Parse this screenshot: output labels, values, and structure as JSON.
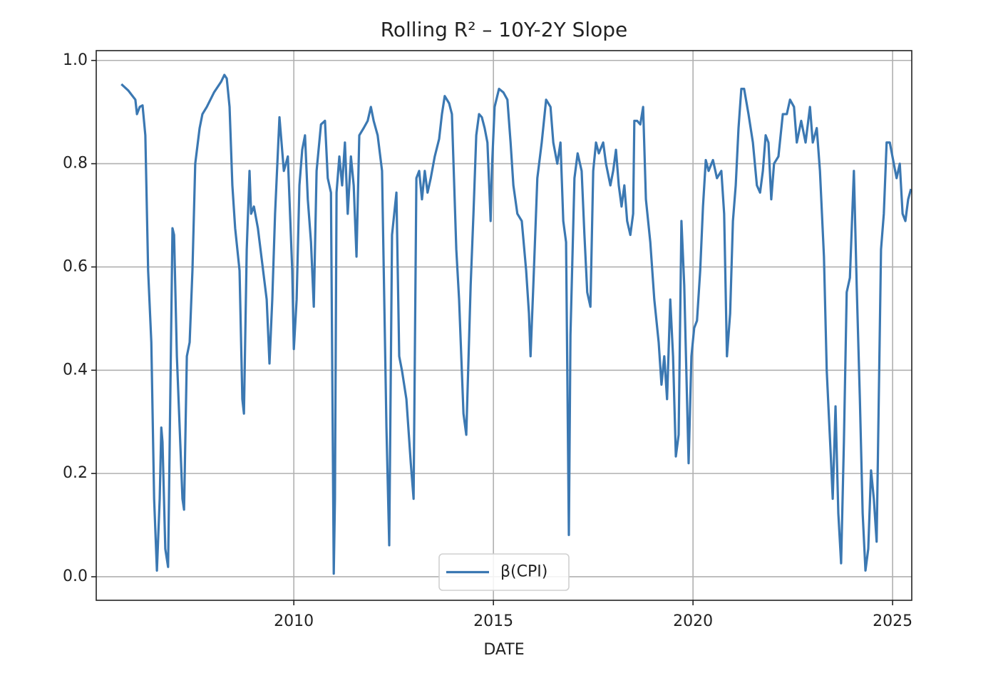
{
  "chart_data": {
    "type": "line",
    "title": "Rolling R² – 10Y-2Y Slope",
    "x_label": "DATE",
    "x": [
      2005.68,
      2005.85,
      2006.03,
      2006.07,
      2006.14,
      2006.21,
      2006.28,
      2006.35,
      2006.43,
      2006.5,
      2006.57,
      2006.64,
      2006.68,
      2006.71,
      2006.78,
      2006.85,
      2006.93,
      2006.96,
      2007.0,
      2007.07,
      2007.14,
      2007.21,
      2007.25,
      2007.32,
      2007.39,
      2007.46,
      2007.53,
      2007.64,
      2007.71,
      2007.82,
      2008.0,
      2008.18,
      2008.26,
      2008.32,
      2008.39,
      2008.46,
      2008.53,
      2008.64,
      2008.71,
      2008.75,
      2008.82,
      2008.89,
      2008.93,
      2009.0,
      2009.1,
      2009.21,
      2009.32,
      2009.39,
      2009.46,
      2009.53,
      2009.64,
      2009.75,
      2009.85,
      2009.96,
      2010.0,
      2010.07,
      2010.14,
      2010.21,
      2010.28,
      2010.35,
      2010.43,
      2010.5,
      2010.57,
      2010.68,
      2010.78,
      2010.85,
      2010.93,
      2011.0,
      2011.03,
      2011.07,
      2011.14,
      2011.21,
      2011.28,
      2011.35,
      2011.43,
      2011.5,
      2011.57,
      2011.64,
      2011.75,
      2011.85,
      2011.93,
      2012.0,
      2012.1,
      2012.21,
      2012.32,
      2012.39,
      2012.46,
      2012.57,
      2012.64,
      2012.71,
      2012.82,
      2012.93,
      2013.0,
      2013.07,
      2013.14,
      2013.21,
      2013.28,
      2013.35,
      2013.43,
      2013.53,
      2013.64,
      2013.71,
      2013.78,
      2013.89,
      2013.96,
      2014.07,
      2014.14,
      2014.25,
      2014.32,
      2014.43,
      2014.5,
      2014.57,
      2014.64,
      2014.71,
      2014.78,
      2014.85,
      2014.93,
      2014.96,
      2015.03,
      2015.14,
      2015.25,
      2015.35,
      2015.43,
      2015.5,
      2015.6,
      2015.71,
      2015.82,
      2015.89,
      2015.93,
      2016.0,
      2016.1,
      2016.21,
      2016.32,
      2016.43,
      2016.5,
      2016.6,
      2016.68,
      2016.75,
      2016.82,
      2016.89,
      2016.93,
      2017.03,
      2017.11,
      2017.21,
      2017.28,
      2017.35,
      2017.43,
      2017.5,
      2017.57,
      2017.64,
      2017.75,
      2017.82,
      2017.93,
      2018.0,
      2018.07,
      2018.14,
      2018.21,
      2018.28,
      2018.35,
      2018.43,
      2018.5,
      2018.53,
      2018.6,
      2018.68,
      2018.75,
      2018.82,
      2018.93,
      2019.03,
      2019.14,
      2019.21,
      2019.28,
      2019.35,
      2019.43,
      2019.5,
      2019.57,
      2019.64,
      2019.71,
      2019.78,
      2019.85,
      2019.89,
      2019.96,
      2020.03,
      2020.1,
      2020.18,
      2020.25,
      2020.32,
      2020.39,
      2020.5,
      2020.6,
      2020.71,
      2020.78,
      2020.85,
      2020.93,
      2021.0,
      2021.07,
      2021.14,
      2021.21,
      2021.28,
      2021.39,
      2021.5,
      2021.6,
      2021.68,
      2021.75,
      2021.82,
      2021.89,
      2021.96,
      2022.03,
      2022.14,
      2022.25,
      2022.35,
      2022.43,
      2022.53,
      2022.6,
      2022.71,
      2022.82,
      2022.93,
      2023.0,
      2023.1,
      2023.18,
      2023.28,
      2023.35,
      2023.46,
      2023.5,
      2023.57,
      2023.64,
      2023.71,
      2023.78,
      2023.85,
      2023.93,
      2024.03,
      2024.1,
      2024.18,
      2024.25,
      2024.32,
      2024.39,
      2024.46,
      2024.53,
      2024.6,
      2024.71,
      2024.78,
      2024.85,
      2024.93,
      2025.03,
      2025.1,
      2025.18,
      2025.25,
      2025.32,
      2025.39,
      2025.46
    ],
    "series": [
      {
        "name": "β(CPI)",
        "color": "#3b78b2",
        "values": [
          0.954,
          0.942,
          0.924,
          0.896,
          0.91,
          0.913,
          0.855,
          0.593,
          0.454,
          0.151,
          0.012,
          0.151,
          0.289,
          0.261,
          0.054,
          0.019,
          0.496,
          0.675,
          0.662,
          0.427,
          0.289,
          0.151,
          0.13,
          0.427,
          0.454,
          0.593,
          0.8,
          0.869,
          0.896,
          0.91,
          0.938,
          0.959,
          0.972,
          0.965,
          0.91,
          0.758,
          0.675,
          0.593,
          0.344,
          0.316,
          0.634,
          0.786,
          0.703,
          0.717,
          0.675,
          0.606,
          0.537,
          0.413,
          0.537,
          0.703,
          0.89,
          0.786,
          0.814,
          0.593,
          0.441,
          0.537,
          0.758,
          0.827,
          0.855,
          0.731,
          0.648,
          0.523,
          0.786,
          0.876,
          0.883,
          0.772,
          0.744,
          0.006,
          0.151,
          0.744,
          0.814,
          0.758,
          0.841,
          0.703,
          0.814,
          0.758,
          0.62,
          0.855,
          0.869,
          0.883,
          0.91,
          0.883,
          0.855,
          0.786,
          0.289,
          0.061,
          0.662,
          0.744,
          0.427,
          0.399,
          0.344,
          0.22,
          0.151,
          0.772,
          0.786,
          0.731,
          0.786,
          0.744,
          0.772,
          0.814,
          0.848,
          0.896,
          0.931,
          0.917,
          0.896,
          0.634,
          0.537,
          0.316,
          0.275,
          0.565,
          0.703,
          0.855,
          0.896,
          0.89,
          0.869,
          0.841,
          0.689,
          0.786,
          0.91,
          0.945,
          0.938,
          0.924,
          0.841,
          0.758,
          0.703,
          0.689,
          0.593,
          0.51,
          0.427,
          0.565,
          0.772,
          0.841,
          0.924,
          0.91,
          0.841,
          0.8,
          0.841,
          0.689,
          0.648,
          0.081,
          0.468,
          0.772,
          0.82,
          0.786,
          0.662,
          0.551,
          0.523,
          0.786,
          0.841,
          0.82,
          0.841,
          0.8,
          0.758,
          0.786,
          0.827,
          0.758,
          0.717,
          0.758,
          0.689,
          0.662,
          0.703,
          0.883,
          0.883,
          0.876,
          0.91,
          0.731,
          0.648,
          0.537,
          0.454,
          0.372,
          0.427,
          0.344,
          0.537,
          0.427,
          0.233,
          0.275,
          0.689,
          0.565,
          0.344,
          0.22,
          0.427,
          0.482,
          0.496,
          0.593,
          0.717,
          0.807,
          0.786,
          0.807,
          0.772,
          0.786,
          0.703,
          0.427,
          0.51,
          0.689,
          0.758,
          0.869,
          0.945,
          0.945,
          0.896,
          0.841,
          0.758,
          0.744,
          0.786,
          0.855,
          0.841,
          0.731,
          0.8,
          0.814,
          0.896,
          0.896,
          0.924,
          0.91,
          0.841,
          0.883,
          0.841,
          0.91,
          0.841,
          0.869,
          0.786,
          0.62,
          0.399,
          0.22,
          0.151,
          0.33,
          0.123,
          0.026,
          0.261,
          0.551,
          0.579,
          0.786,
          0.565,
          0.344,
          0.123,
          0.012,
          0.054,
          0.206,
          0.151,
          0.068,
          0.634,
          0.703,
          0.841,
          0.841,
          0.8,
          0.772,
          0.8,
          0.703,
          0.689,
          0.731,
          0.751
        ]
      }
    ],
    "xlim": [
      2005.05,
      2025.48
    ],
    "xticks": [
      2010,
      2015,
      2020,
      2025
    ],
    "ylim": [
      -0.0456,
      1.019
    ],
    "yticks": [
      {
        "value": 0,
        "label": "0.0"
      },
      0.2,
      0.4,
      0.6,
      0.8,
      {
        "value": 1,
        "label": "1.0"
      }
    ],
    "grid": true,
    "legend": "lower center"
  }
}
